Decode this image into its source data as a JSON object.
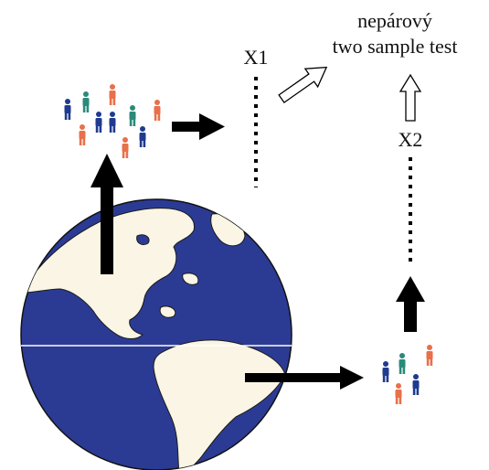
{
  "labels": {
    "title_line1": "nepárový",
    "title_line2": "two sample test",
    "sample1": "X1",
    "sample2": "X2"
  },
  "colors": {
    "ocean": "#2b3b94",
    "land": "#faf5e4",
    "person_blue": "#1f3a8f",
    "person_teal": "#2a8a7a",
    "person_orange": "#e8704a",
    "arrow_solid": "#000000",
    "arrow_outline": "#000000"
  },
  "icons": {
    "person": "person-icon",
    "globe": "globe-icon",
    "arrow": "arrow-icon"
  }
}
